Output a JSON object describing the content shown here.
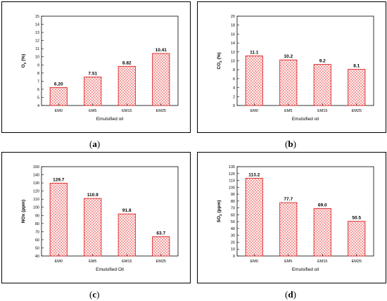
{
  "colors": {
    "bar_stroke": "#e02020",
    "bar_hatch": "#f08080"
  },
  "charts": [
    {
      "panel": "(a)",
      "chart_data": {
        "type": "bar",
        "categories": [
          "EM0",
          "EM5",
          "EM15",
          "EM25"
        ],
        "values": [
          6.2,
          7.51,
          8.82,
          10.41
        ],
        "value_labels": [
          "6.20",
          "7.51",
          "8.82",
          "10.41"
        ],
        "xlabel": "Emulsified oil",
        "ylabel_main": "O",
        "ylabel_sub": "2",
        "ylabel_unit": "(%)",
        "ylim": [
          4,
          15
        ],
        "yticks": [
          "4",
          "5",
          "6",
          "7",
          "8",
          "9",
          "10",
          "11",
          "12",
          "13",
          "14",
          "15"
        ]
      }
    },
    {
      "panel": "(b)",
      "chart_data": {
        "type": "bar",
        "categories": [
          "EM0",
          "EM5",
          "EM15",
          "EM25"
        ],
        "values": [
          11.1,
          10.2,
          9.2,
          8.1
        ],
        "value_labels": [
          "11.1",
          "10.2",
          "9.2",
          "8.1"
        ],
        "xlabel": "Emulsified oil",
        "ylabel_main": "CO",
        "ylabel_sub": "2",
        "ylabel_unit": "(%)",
        "ylim": [
          0,
          20
        ],
        "yticks": [
          "0",
          "2",
          "4",
          "6",
          "8",
          "10",
          "12",
          "14",
          "16",
          "18",
          "20"
        ]
      }
    },
    {
      "panel": "(c)",
      "chart_data": {
        "type": "bar",
        "categories": [
          "EM0",
          "EM5",
          "EM15",
          "EM25"
        ],
        "values": [
          129.7,
          110.9,
          91.8,
          63.7
        ],
        "value_labels": [
          "129.7",
          "110.9",
          "91.8",
          "63.7"
        ],
        "xlabel": "Emulsified Oil",
        "ylabel_main": "NOx",
        "ylabel_sub": "",
        "ylabel_unit": "(ppm)",
        "ylim": [
          40,
          150
        ],
        "yticks": [
          "40",
          "50",
          "60",
          "70",
          "80",
          "90",
          "100",
          "110",
          "120",
          "130",
          "140",
          "150"
        ]
      }
    },
    {
      "panel": "(d)",
      "chart_data": {
        "type": "bar",
        "categories": [
          "EM0",
          "EM5",
          "EM15",
          "EM25"
        ],
        "values": [
          113.2,
          77.7,
          69.0,
          50.5
        ],
        "value_labels": [
          "113.2",
          "77.7",
          "69.0",
          "50.5"
        ],
        "xlabel": "Emulsified oil",
        "ylabel_main": "SO",
        "ylabel_sub": "2",
        "ylabel_unit": "(ppm)",
        "ylim": [
          0,
          130
        ],
        "yticks": [
          "0",
          "10",
          "20",
          "30",
          "40",
          "50",
          "60",
          "70",
          "80",
          "90",
          "100",
          "110",
          "120",
          "130"
        ]
      }
    }
  ]
}
